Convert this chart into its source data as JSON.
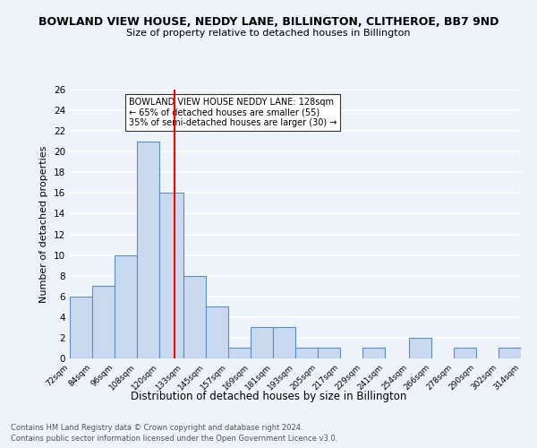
{
  "title": "BOWLAND VIEW HOUSE, NEDDY LANE, BILLINGTON, CLITHEROE, BB7 9ND",
  "subtitle": "Size of property relative to detached houses in Billington",
  "xlabel": "Distribution of detached houses by size in Billington",
  "ylabel": "Number of detached properties",
  "bin_edges": [
    72,
    84,
    96,
    108,
    120,
    133,
    145,
    157,
    169,
    181,
    193,
    205,
    217,
    229,
    241,
    254,
    266,
    278,
    290,
    302,
    314
  ],
  "counts": [
    6,
    7,
    10,
    21,
    16,
    8,
    5,
    1,
    3,
    3,
    1,
    1,
    0,
    1,
    0,
    2,
    0,
    1,
    0,
    1
  ],
  "bar_facecolor": "#c9d9f0",
  "bar_edgecolor": "#5b8ec4",
  "red_line_x": 128,
  "ylim": [
    0,
    26
  ],
  "yticks": [
    0,
    2,
    4,
    6,
    8,
    10,
    12,
    14,
    16,
    18,
    20,
    22,
    24,
    26
  ],
  "tick_labels": [
    "72sqm",
    "84sqm",
    "96sqm",
    "108sqm",
    "120sqm",
    "133sqm",
    "145sqm",
    "157sqm",
    "169sqm",
    "181sqm",
    "193sqm",
    "205sqm",
    "217sqm",
    "229sqm",
    "241sqm",
    "254sqm",
    "266sqm",
    "278sqm",
    "290sqm",
    "302sqm",
    "314sqm"
  ],
  "annotation_title": "BOWLAND VIEW HOUSE NEDDY LANE: 128sqm",
  "annotation_line1": "← 65% of detached houses are smaller (55)",
  "annotation_line2": "35% of semi-detached houses are larger (30) →",
  "footer1": "Contains HM Land Registry data © Crown copyright and database right 2024.",
  "footer2": "Contains public sector information licensed under the Open Government Licence v3.0.",
  "bg_color": "#eef2f9",
  "grid_color": "#ffffff"
}
